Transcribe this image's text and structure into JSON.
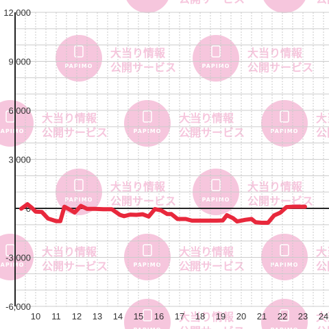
{
  "chart_data": {
    "type": "line",
    "title": "",
    "xlabel": "",
    "ylabel": "",
    "xlim": [
      9.3,
      24.5
    ],
    "ylim": [
      -6000,
      12000
    ],
    "x_ticks": [
      "10",
      "11",
      "12",
      "13",
      "14",
      "15",
      "16",
      "17",
      "18",
      "19",
      "20",
      "21",
      "22",
      "23",
      "24"
    ],
    "y_ticks": [
      "12,000",
      "9,000",
      "6,000",
      "3,000",
      "0",
      "-3,000",
      "-6,000"
    ],
    "y_tick_values": [
      12000,
      9000,
      6000,
      3000,
      0,
      -3000,
      -6000
    ],
    "grid": true,
    "line_color": "#e8283c",
    "series": [
      {
        "points": [
          [
            9.3,
            -20
          ],
          [
            9.6,
            250
          ],
          [
            9.8,
            50
          ],
          [
            10.0,
            -200
          ],
          [
            10.3,
            -220
          ],
          [
            10.6,
            -620
          ],
          [
            11.0,
            -780
          ],
          [
            11.2,
            -780
          ],
          [
            11.4,
            100
          ],
          [
            11.7,
            -100
          ],
          [
            11.9,
            -250
          ],
          [
            12.2,
            150
          ],
          [
            12.5,
            -30
          ],
          [
            12.9,
            -30
          ],
          [
            13.3,
            -50
          ],
          [
            13.7,
            -50
          ],
          [
            14.1,
            -400
          ],
          [
            14.3,
            -480
          ],
          [
            14.6,
            -380
          ],
          [
            14.9,
            -400
          ],
          [
            15.2,
            -360
          ],
          [
            15.5,
            -500
          ],
          [
            15.8,
            -40
          ],
          [
            16.1,
            -120
          ],
          [
            16.4,
            -350
          ],
          [
            16.6,
            -350
          ],
          [
            16.9,
            -650
          ],
          [
            17.3,
            -650
          ],
          [
            17.6,
            -750
          ],
          [
            18.0,
            -750
          ],
          [
            18.4,
            -750
          ],
          [
            18.8,
            -750
          ],
          [
            19.1,
            -740
          ],
          [
            19.3,
            -420
          ],
          [
            19.6,
            -600
          ],
          [
            19.8,
            -800
          ],
          [
            20.2,
            -700
          ],
          [
            20.5,
            -650
          ],
          [
            20.7,
            -850
          ],
          [
            21.0,
            -880
          ],
          [
            21.3,
            -880
          ],
          [
            21.6,
            -430
          ],
          [
            21.9,
            -260
          ],
          [
            22.2,
            80
          ],
          [
            22.5,
            100
          ],
          [
            22.8,
            100
          ],
          [
            23.1,
            100
          ]
        ]
      }
    ]
  },
  "watermark": {
    "line1": "大当り情報",
    "line2": "公開サービス",
    "logo_text": "PAPIMO",
    "color": "#f6c6dd"
  }
}
